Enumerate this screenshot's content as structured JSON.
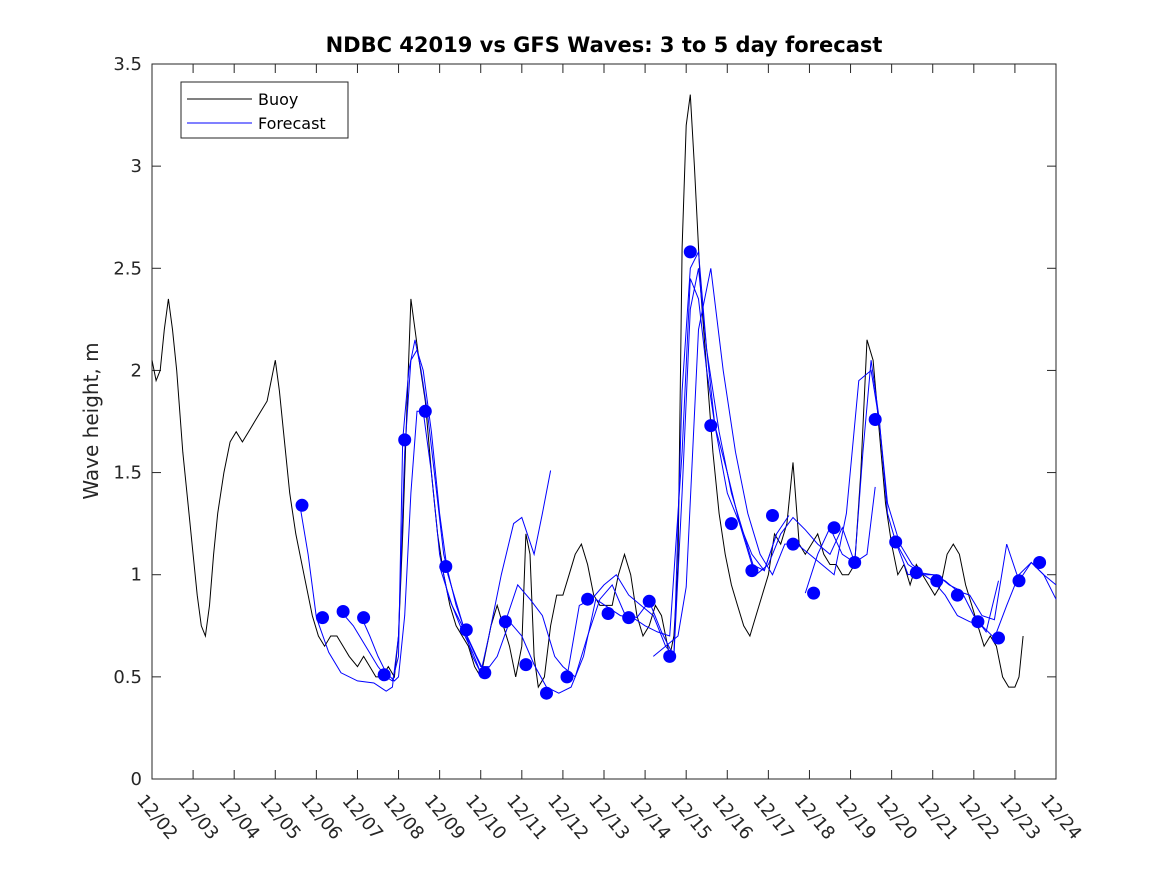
{
  "chart_data": {
    "type": "line",
    "title": "NDBC 42019 vs GFS Waves: 3 to 5 day forecast",
    "xlabel": "",
    "ylabel": "Wave height, m",
    "xlim": [
      0,
      22
    ],
    "ylim": [
      0,
      3.5
    ],
    "grid": false,
    "legend_position": "top-left",
    "x_ticks": [
      {
        "pos": 0,
        "label": "12/02"
      },
      {
        "pos": 1,
        "label": "12/03"
      },
      {
        "pos": 2,
        "label": "12/04"
      },
      {
        "pos": 3,
        "label": "12/05"
      },
      {
        "pos": 4,
        "label": "12/06"
      },
      {
        "pos": 5,
        "label": "12/07"
      },
      {
        "pos": 6,
        "label": "12/08"
      },
      {
        "pos": 7,
        "label": "12/09"
      },
      {
        "pos": 8,
        "label": "12/10"
      },
      {
        "pos": 9,
        "label": "12/11"
      },
      {
        "pos": 10,
        "label": "12/12"
      },
      {
        "pos": 11,
        "label": "12/13"
      },
      {
        "pos": 12,
        "label": "12/14"
      },
      {
        "pos": 13,
        "label": "12/15"
      },
      {
        "pos": 14,
        "label": "12/16"
      },
      {
        "pos": 15,
        "label": "12/17"
      },
      {
        "pos": 16,
        "label": "12/18"
      },
      {
        "pos": 17,
        "label": "12/19"
      },
      {
        "pos": 18,
        "label": "12/20"
      },
      {
        "pos": 19,
        "label": "12/21"
      },
      {
        "pos": 20,
        "label": "12/22"
      },
      {
        "pos": 21,
        "label": "12/23"
      },
      {
        "pos": 22,
        "label": "12/24"
      }
    ],
    "y_ticks": [
      {
        "value": 0,
        "label": "0"
      },
      {
        "value": 0.5,
        "label": "0.5"
      },
      {
        "value": 1,
        "label": "1"
      },
      {
        "value": 1.5,
        "label": "1.5"
      },
      {
        "value": 2,
        "label": "2"
      },
      {
        "value": 2.5,
        "label": "2.5"
      },
      {
        "value": 3,
        "label": "3"
      },
      {
        "value": 3.5,
        "label": "3.5"
      }
    ],
    "series": [
      {
        "name": "Buoy",
        "color": "#000000",
        "x": [
          0,
          0.1,
          0.2,
          0.3,
          0.4,
          0.5,
          0.6,
          0.75,
          0.9,
          1.0,
          1.1,
          1.2,
          1.3,
          1.4,
          1.5,
          1.6,
          1.75,
          1.9,
          2.05,
          2.2,
          2.35,
          2.5,
          2.65,
          2.8,
          3.0,
          3.1,
          3.2,
          3.35,
          3.5,
          3.7,
          3.9,
          4.05,
          4.2,
          4.35,
          4.5,
          4.65,
          4.8,
          5.0,
          5.15,
          5.3,
          5.45,
          5.6,
          5.75,
          5.9,
          6.0,
          6.1,
          6.2,
          6.3,
          6.4,
          6.5,
          6.65,
          6.8,
          6.95,
          7.1,
          7.25,
          7.4,
          7.55,
          7.7,
          7.85,
          8.0,
          8.1,
          8.25,
          8.4,
          8.55,
          8.7,
          8.85,
          9.0,
          9.1,
          9.2,
          9.3,
          9.4,
          9.55,
          9.7,
          9.85,
          10.0,
          10.15,
          10.3,
          10.45,
          10.6,
          10.75,
          10.9,
          11.05,
          11.2,
          11.35,
          11.5,
          11.65,
          11.8,
          11.95,
          12.1,
          12.25,
          12.4,
          12.5,
          12.6,
          12.7,
          12.8,
          12.9,
          13.0,
          13.1,
          13.2,
          13.35,
          13.5,
          13.65,
          13.8,
          13.95,
          14.1,
          14.25,
          14.4,
          14.55,
          14.7,
          14.85,
          15.0,
          15.15,
          15.3,
          15.45,
          15.6,
          15.75,
          15.9,
          16.05,
          16.2,
          16.35,
          16.5,
          16.65,
          16.8,
          16.95,
          17.1,
          17.25,
          17.4,
          17.55,
          17.7,
          17.85,
          18.0,
          18.15,
          18.3,
          18.45,
          18.6,
          18.75,
          18.9,
          19.05,
          19.2,
          19.35,
          19.5,
          19.65,
          19.8,
          19.95,
          20.1,
          20.25,
          20.4,
          20.55,
          20.7,
          20.85,
          21.0,
          21.1,
          21.2
        ],
        "values": [
          2.05,
          1.95,
          2.0,
          2.2,
          2.35,
          2.2,
          2.0,
          1.6,
          1.3,
          1.1,
          0.9,
          0.75,
          0.7,
          0.85,
          1.1,
          1.3,
          1.5,
          1.65,
          1.7,
          1.65,
          1.7,
          1.75,
          1.8,
          1.85,
          2.05,
          1.9,
          1.7,
          1.4,
          1.2,
          1.0,
          0.8,
          0.7,
          0.65,
          0.7,
          0.7,
          0.65,
          0.6,
          0.55,
          0.6,
          0.55,
          0.5,
          0.5,
          0.55,
          0.5,
          0.7,
          1.2,
          1.8,
          2.35,
          2.2,
          2.05,
          1.85,
          1.5,
          1.2,
          1.0,
          0.85,
          0.75,
          0.7,
          0.65,
          0.55,
          0.5,
          0.6,
          0.75,
          0.85,
          0.75,
          0.65,
          0.5,
          0.65,
          1.2,
          1.1,
          0.6,
          0.45,
          0.5,
          0.75,
          0.9,
          0.9,
          1.0,
          1.1,
          1.15,
          1.05,
          0.9,
          0.85,
          0.85,
          0.85,
          1.0,
          1.1,
          1.0,
          0.8,
          0.7,
          0.75,
          0.85,
          0.8,
          0.7,
          0.6,
          0.7,
          1.05,
          2.6,
          3.2,
          3.35,
          3.0,
          2.4,
          2.0,
          1.6,
          1.3,
          1.1,
          0.95,
          0.85,
          0.75,
          0.7,
          0.8,
          0.9,
          1.0,
          1.2,
          1.15,
          1.25,
          1.55,
          1.15,
          1.1,
          1.15,
          1.2,
          1.1,
          1.05,
          1.05,
          1.0,
          1.0,
          1.05,
          1.5,
          2.15,
          2.05,
          1.7,
          1.35,
          1.15,
          1.0,
          1.05,
          0.95,
          1.05,
          1.0,
          0.95,
          0.9,
          0.95,
          1.1,
          1.15,
          1.1,
          0.95,
          0.85,
          0.75,
          0.65,
          0.7,
          0.65,
          0.5,
          0.45,
          0.45,
          0.5,
          0.7
        ]
      },
      {
        "name": "Forecast",
        "color": "#0000ff",
        "runs": [
          {
            "x": [
              3.6,
              3.8,
              4.0,
              4.3,
              4.6,
              5.0,
              5.4,
              5.7,
              5.85,
              6.0,
              6.15,
              6.3,
              6.45,
              6.6,
              6.8,
              7.0,
              7.2,
              7.5,
              7.8,
              8.0
            ],
            "values": [
              1.34,
              1.1,
              0.79,
              0.62,
              0.52,
              0.48,
              0.47,
              0.43,
              0.45,
              0.7,
              1.6,
              2.05,
              2.1,
              2.0,
              1.7,
              1.3,
              1.0,
              0.8,
              0.6,
              0.52
            ]
          },
          {
            "x": [
              4.6,
              4.9,
              5.2,
              5.5,
              5.7,
              5.85,
              6.0,
              6.1,
              6.25,
              6.4,
              6.55,
              6.7,
              6.9,
              7.1,
              7.4,
              7.7,
              8.0,
              8.2
            ],
            "values": [
              0.82,
              0.75,
              0.65,
              0.55,
              0.5,
              0.48,
              0.6,
              1.66,
              2.0,
              2.15,
              2.0,
              1.8,
              1.45,
              1.1,
              0.85,
              0.68,
              0.55,
              0.55
            ]
          },
          {
            "x": [
              5.1,
              5.3,
              5.5,
              5.7,
              5.9,
              6.0,
              6.15,
              6.3,
              6.45,
              6.6,
              6.8,
              7.0,
              7.2,
              7.5,
              7.8,
              8.0,
              8.2,
              8.5,
              8.8,
              9.0,
              9.3,
              9.5,
              9.7
            ],
            "values": [
              0.79,
              0.7,
              0.6,
              0.52,
              0.48,
              0.5,
              0.8,
              1.4,
              1.8,
              1.8,
              1.5,
              1.1,
              0.9,
              0.75,
              0.62,
              0.52,
              0.7,
              1.0,
              1.25,
              1.28,
              1.1,
              1.3,
              1.51
            ]
          },
          {
            "x": [
              7.0,
              7.3,
              7.6,
              7.9,
              8.1,
              8.4,
              8.7,
              9.0,
              9.3,
              9.6,
              9.9,
              10.2,
              10.5,
              10.8,
              11.1,
              11.4,
              11.7,
              12.0,
              12.3,
              12.6,
              12.9,
              13.1,
              13.3,
              13.5,
              13.7,
              14.0,
              14.3,
              14.6,
              14.9,
              15.2
            ],
            "values": [
              1.04,
              0.85,
              0.73,
              0.6,
              0.52,
              0.6,
              0.77,
              0.7,
              0.56,
              0.45,
              0.42,
              0.45,
              0.6,
              0.88,
              0.84,
              0.8,
              0.79,
              0.75,
              0.72,
              0.7,
              1.6,
              2.45,
              2.35,
              2.0,
              1.73,
              1.4,
              1.25,
              1.05,
              1.02,
              1.2
            ]
          },
          {
            "x": [
              8.6,
              8.9,
              9.2,
              9.5,
              9.8,
              10.0,
              10.3,
              10.6,
              10.9,
              11.2,
              11.5,
              11.8,
              12.1,
              12.4,
              12.7,
              12.9,
              13.1,
              13.3,
              13.5,
              13.7,
              14.0,
              14.3,
              14.6,
              14.9,
              15.2,
              15.5
            ],
            "values": [
              0.77,
              0.95,
              0.88,
              0.8,
              0.6,
              0.55,
              0.5,
              0.7,
              0.88,
              0.95,
              0.81,
              0.79,
              0.87,
              0.72,
              0.6,
              1.9,
              2.5,
              2.58,
              2.1,
              1.73,
              1.5,
              1.25,
              1.1,
              1.02,
              1.2,
              1.29
            ]
          },
          {
            "x": [
              10.1,
              10.4,
              10.7,
              11.0,
              11.3,
              11.6,
              11.9,
              12.2,
              12.5,
              12.7,
              12.9,
              13.1,
              13.3,
              13.5,
              13.8,
              14.1,
              14.4,
              14.7,
              15.0,
              15.3,
              15.6,
              15.9,
              16.2,
              16.5,
              16.8,
              17.1,
              17.4,
              17.6
            ],
            "values": [
              0.5,
              0.85,
              0.88,
              0.95,
              1.0,
              0.9,
              0.85,
              0.8,
              0.65,
              0.6,
              1.4,
              2.3,
              2.5,
              2.1,
              1.7,
              1.4,
              1.2,
              1.0,
              1.05,
              1.2,
              1.28,
              1.22,
              1.15,
              1.1,
              1.23,
              1.06,
              1.1,
              1.43
            ]
          },
          {
            "x": [
              12.2,
              12.5,
              12.8,
              13.0,
              13.3,
              13.6,
              13.9,
              14.2,
              14.5,
              14.8,
              15.1,
              15.4,
              15.7,
              16.0,
              16.3,
              16.6,
              16.9,
              17.2,
              17.5,
              17.7,
              17.9,
              18.2,
              18.5,
              18.8,
              19.1,
              19.4,
              19.7,
              20.0,
              20.3,
              20.6
            ],
            "values": [
              0.6,
              0.65,
              0.7,
              0.94,
              2.2,
              2.5,
              2.0,
              1.6,
              1.3,
              1.1,
              1.0,
              1.15,
              1.15,
              1.1,
              1.05,
              1.0,
              1.3,
              1.95,
              2.0,
              1.75,
              1.35,
              1.15,
              1.05,
              1.0,
              1.0,
              0.95,
              0.92,
              0.8,
              0.72,
              0.97
            ]
          },
          {
            "x": [
              15.9,
              16.2,
              16.5,
              16.8,
              17.1,
              17.3,
              17.5,
              17.7,
              17.9,
              18.1,
              18.4,
              18.7,
              19.0,
              19.3,
              19.6,
              19.9,
              20.2,
              20.5,
              20.8,
              21.1,
              21.4,
              21.7,
              22.0
            ],
            "values": [
              0.91,
              1.1,
              1.23,
              1.1,
              1.06,
              1.6,
              2.05,
              1.76,
              1.3,
              1.16,
              1.0,
              1.01,
              0.97,
              0.9,
              0.8,
              0.77,
              0.75,
              0.69,
              0.85,
              1.0,
              1.06,
              1.0,
              0.88
            ]
          },
          {
            "x": [
              18.1,
              18.4,
              18.7,
              19.0,
              19.3,
              19.6,
              19.9,
              20.2,
              20.5,
              20.8,
              21.1,
              21.4,
              21.7,
              22.0
            ],
            "values": [
              1.16,
              1.05,
              1.01,
              1.0,
              0.97,
              0.92,
              0.9,
              0.8,
              0.78,
              1.15,
              0.97,
              1.06,
              1.0,
              0.95
            ]
          }
        ],
        "markers": {
          "x": [
            3.65,
            4.15,
            4.65,
            5.15,
            5.65,
            6.15,
            6.65,
            7.15,
            7.65,
            8.1,
            8.6,
            9.1,
            9.6,
            10.1,
            10.6,
            11.1,
            11.6,
            12.1,
            12.6,
            13.1,
            13.6,
            14.1,
            14.6,
            15.1,
            15.6,
            16.1,
            16.6,
            17.1,
            17.6,
            18.1,
            18.6,
            19.1,
            19.6,
            20.1,
            20.6,
            21.1,
            21.6
          ],
          "values": [
            1.34,
            0.79,
            0.82,
            0.79,
            0.51,
            1.66,
            1.8,
            1.04,
            0.73,
            0.52,
            0.77,
            0.56,
            0.42,
            0.5,
            0.88,
            0.81,
            0.79,
            0.87,
            0.6,
            2.58,
            1.73,
            1.25,
            1.02,
            1.29,
            1.15,
            0.91,
            1.23,
            1.06,
            1.76,
            1.16,
            1.01,
            0.97,
            0.9,
            0.77,
            0.69,
            0.97,
            1.06
          ]
        }
      }
    ]
  }
}
